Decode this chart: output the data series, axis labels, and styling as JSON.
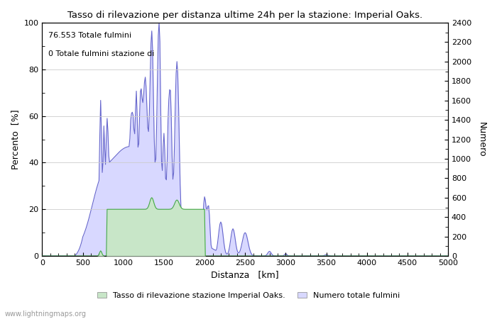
{
  "title": "Tasso di rilevazione per distanza ultime 24h per la stazione: Imperial Oaks.",
  "xlabel": "Distanza   [km]",
  "ylabel_left": "Percento  [%]",
  "ylabel_right": "Numero",
  "annotation_line1": "76.553 Totale fulmini",
  "annotation_line2": "0 Totale fulmini stazione di",
  "legend_label1": "Tasso di rilevazione stazione Imperial Oaks.",
  "legend_label2": "Numero totale fulmini",
  "watermark": "www.lightningmaps.org",
  "xlim": [
    0,
    5000
  ],
  "ylim_left": [
    0,
    100
  ],
  "ylim_right": [
    0,
    2400
  ],
  "xticks": [
    0,
    500,
    1000,
    1500,
    2000,
    2500,
    3000,
    3500,
    4000,
    4500,
    5000
  ],
  "yticks_left": [
    0,
    20,
    40,
    60,
    80,
    100
  ],
  "yticks_right": [
    0,
    200,
    400,
    600,
    800,
    1000,
    1200,
    1400,
    1600,
    1800,
    2000,
    2200,
    2400
  ],
  "color_fill_green": "#c8e6c8",
  "color_fill_blue": "#d8d8ff",
  "color_line_blue": "#6666cc",
  "color_line_green": "#44aa44",
  "background_color": "#ffffff",
  "grid_color": "#cccccc",
  "figsize": [
    7.0,
    4.5
  ],
  "dpi": 100
}
